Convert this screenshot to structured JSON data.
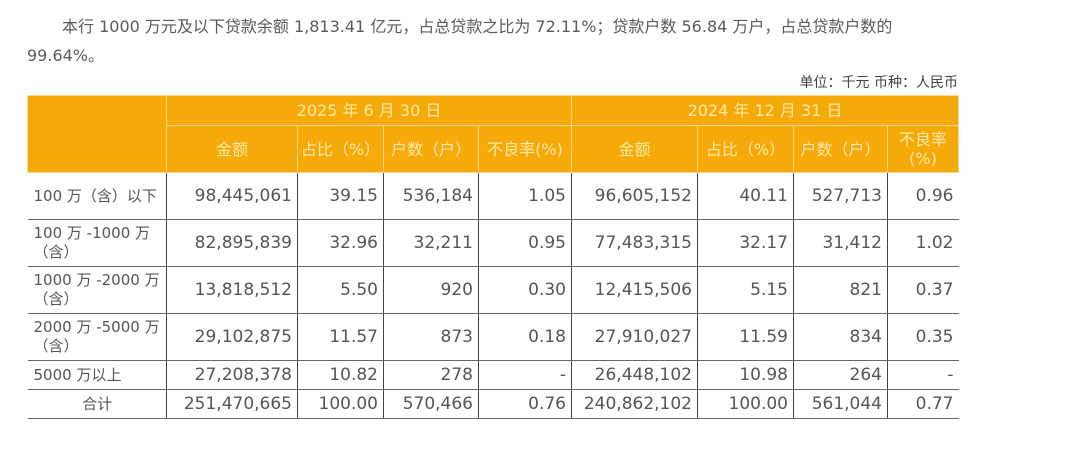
{
  "paragraph": "本行 1000 万元及以下贷款余额 1,813.41 亿元，占总贷款之比为 72.11%；贷款户数 56.84 万户，占总贷款户数的 99.64%。",
  "unit": "单位：千元 币种：人民币",
  "colors": {
    "header_bg": "#f5aa0a",
    "header_text": "#fde9a6"
  },
  "table": {
    "periods": [
      "2025 年 6 月 30 日",
      "2024 年 12 月 31 日"
    ],
    "columns": [
      "金额",
      "占比（%）",
      "户数（户）",
      "不良率(%)",
      "金额",
      "占比（%）",
      "户数（户）",
      "不良率(%)"
    ],
    "rows": [
      {
        "label": "100 万（含）以下",
        "cells": [
          "98,445,061",
          "39.15",
          "536,184",
          "1.05",
          "96,605,152",
          "40.11",
          "527,713",
          "0.96"
        ]
      },
      {
        "label": "100 万 -1000 万（含）",
        "cells": [
          "82,895,839",
          "32.96",
          "32,211",
          "0.95",
          "77,483,315",
          "32.17",
          "31,412",
          "1.02"
        ]
      },
      {
        "label": "1000 万 -2000 万（含）",
        "cells": [
          "13,818,512",
          "5.50",
          "920",
          "0.30",
          "12,415,506",
          "5.15",
          "821",
          "0.37"
        ]
      },
      {
        "label": "2000 万 -5000 万（含）",
        "cells": [
          "29,102,875",
          "11.57",
          "873",
          "0.18",
          "27,910,027",
          "11.59",
          "834",
          "0.35"
        ]
      },
      {
        "label": "5000 万以上",
        "cells": [
          "27,208,378",
          "10.82",
          "278",
          "-",
          "26,448,102",
          "10.98",
          "264",
          "-"
        ]
      },
      {
        "label": "合计",
        "cells": [
          "251,470,665",
          "100.00",
          "570,466",
          "0.76",
          "240,862,102",
          "100.00",
          "561,044",
          "0.77"
        ]
      }
    ]
  }
}
